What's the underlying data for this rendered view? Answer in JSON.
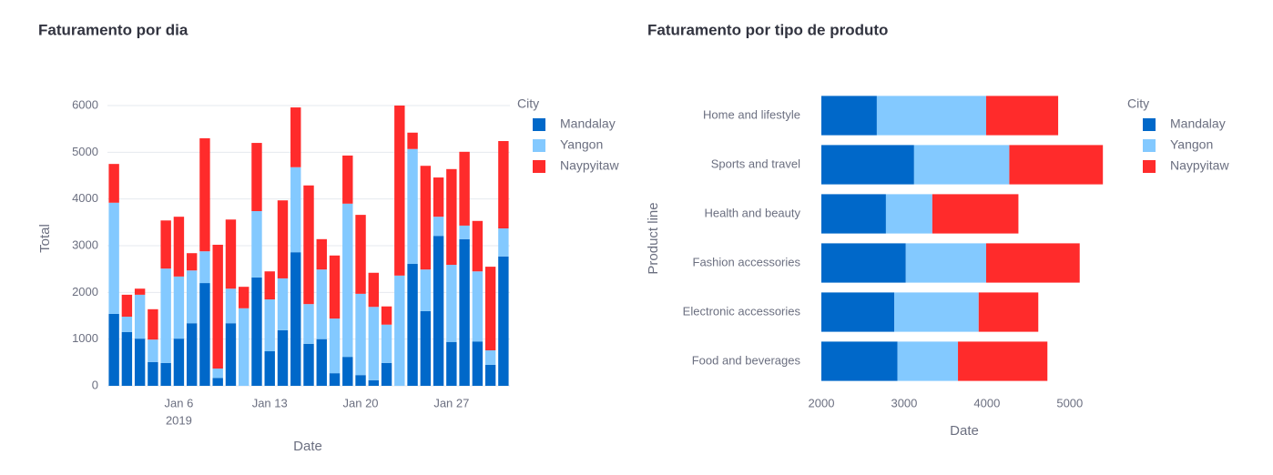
{
  "chart_data": [
    {
      "type": "bar",
      "title": "Faturamento por dia",
      "xlabel": "Date",
      "ylabel": "Total",
      "legend_title": "City",
      "x": [
        "2019-01-01",
        "2019-01-02",
        "2019-01-03",
        "2019-01-04",
        "2019-01-05",
        "2019-01-06",
        "2019-01-07",
        "2019-01-08",
        "2019-01-09",
        "2019-01-10",
        "2019-01-11",
        "2019-01-12",
        "2019-01-13",
        "2019-01-14",
        "2019-01-15",
        "2019-01-16",
        "2019-01-17",
        "2019-01-18",
        "2019-01-19",
        "2019-01-20",
        "2019-01-21",
        "2019-01-22",
        "2019-01-23",
        "2019-01-24",
        "2019-01-25",
        "2019-01-26",
        "2019-01-27",
        "2019-01-28",
        "2019-01-29",
        "2019-01-30",
        "2019-01-31"
      ],
      "series": [
        {
          "name": "Mandalay",
          "color": "#0068c9",
          "values": [
            1540,
            1150,
            1010,
            510,
            490,
            1010,
            1340,
            2200,
            170,
            1340,
            0,
            2320,
            740,
            1190,
            2860,
            900,
            1000,
            270,
            620,
            230,
            120,
            490,
            0,
            2610,
            1600,
            3210,
            940,
            3140,
            950,
            450,
            2770
          ]
        },
        {
          "name": "Yangon",
          "color": "#83c9ff",
          "values": [
            2380,
            330,
            940,
            480,
            2020,
            1330,
            1130,
            680,
            200,
            740,
            1660,
            1420,
            1110,
            1110,
            1820,
            850,
            1490,
            1170,
            3280,
            1740,
            1570,
            820,
            2360,
            2460,
            890,
            410,
            1650,
            290,
            1500,
            310,
            600
          ]
        },
        {
          "name": "Naypyitaw",
          "color": "#ff2b2b",
          "values": [
            830,
            470,
            130,
            650,
            1030,
            1280,
            370,
            2420,
            2650,
            1480,
            460,
            1460,
            600,
            1670,
            1280,
            2540,
            650,
            1350,
            1030,
            1690,
            730,
            390,
            3640,
            350,
            2220,
            840,
            2050,
            1580,
            1080,
            1790,
            1870
          ]
        }
      ],
      "xlim": [
        "2018-12-31T12:00:00Z",
        "2019-01-31T12:00:00Z"
      ],
      "xticks": [
        {
          "value": "2019-01-06",
          "label": "Jan 6",
          "sublabel": "2019"
        },
        {
          "value": "2019-01-13",
          "label": "Jan 13"
        },
        {
          "value": "2019-01-20",
          "label": "Jan 20"
        },
        {
          "value": "2019-01-27",
          "label": "Jan 27"
        }
      ],
      "ylim": [
        0,
        6000
      ],
      "yticks": [
        0,
        1000,
        2000,
        3000,
        4000,
        5000,
        6000
      ],
      "grid": true
    },
    {
      "type": "bar",
      "orientation": "h",
      "title": "Faturamento por tipo de produto",
      "xlabel": "Date",
      "ylabel": "Product line",
      "legend_title": "City",
      "categories": [
        "Home and lifestyle",
        "Sports and travel",
        "Health and beauty",
        "Fashion accessories",
        "Electronic accessories",
        "Food and beverages"
      ],
      "series": [
        {
          "name": "Mandalay",
          "color": "#0068c9",
          "values": [
            2670,
            3120,
            2780,
            3020,
            2880,
            2920
          ]
        },
        {
          "name": "Yangon",
          "color": "#83c9ff",
          "values": [
            1320,
            1150,
            560,
            970,
            1020,
            730
          ]
        },
        {
          "name": "Naypyitaw",
          "color": "#ff2b2b",
          "values": [
            870,
            1130,
            1040,
            1130,
            720,
            1080
          ]
        }
      ],
      "xlim": [
        2000,
        5420
      ],
      "xticks": [
        2000,
        3000,
        4000,
        5000
      ],
      "grid": false
    }
  ]
}
